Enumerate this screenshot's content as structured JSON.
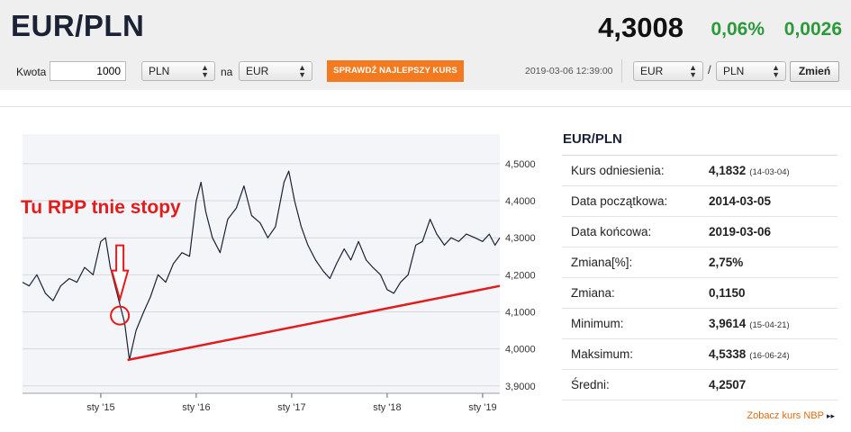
{
  "header": {
    "pair": "EUR/PLN",
    "price": "4,3008",
    "change_pct": "0,06%",
    "change_abs": "0,0026"
  },
  "converter": {
    "amount_label": "Kwota",
    "amount_value": "1000",
    "from_currency": "PLN",
    "to_label": "na",
    "to_currency": "EUR",
    "best_rate_button": "SPRAWDŹ NAJLEPSZY KURS",
    "timestamp": "2019-03-06 12:39:00",
    "pair_select_base": "EUR",
    "pair_select_separator": "/",
    "pair_select_quote": "PLN",
    "change_button": "Zmień"
  },
  "stats": {
    "title": "EUR/PLN",
    "rows": [
      {
        "label": "Kurs odniesienia:",
        "value": "4,1832",
        "date": "(14-03-04)"
      },
      {
        "label": "Data początkowa:",
        "value": "2014-03-05",
        "date": ""
      },
      {
        "label": "Data końcowa:",
        "value": "2019-03-06",
        "date": ""
      },
      {
        "label": "Zmiana[%]:",
        "value": "2,75%",
        "date": ""
      },
      {
        "label": "Zmiana:",
        "value": "0,1150",
        "date": ""
      },
      {
        "label": "Minimum:",
        "value": "3,9614",
        "date": "(15-04-21)"
      },
      {
        "label": "Maksimum:",
        "value": "4,5338",
        "date": "(16-06-24)"
      },
      {
        "label": "Średni:",
        "value": "4,2507",
        "date": ""
      }
    ],
    "nbp_link": "Zobacz kurs NBP"
  },
  "chart_data": {
    "type": "line",
    "title": "",
    "xlabel": "",
    "ylabel": "",
    "ylim": [
      3.88,
      4.58
    ],
    "x_range": [
      2014.18,
      2019.18
    ],
    "y_ticks": [
      "3,9000",
      "4,0000",
      "4,1000",
      "4,2000",
      "4,3000",
      "4,4000",
      "4,5000"
    ],
    "y_tick_values": [
      3.9,
      4.0,
      4.1,
      4.2,
      4.3,
      4.4,
      4.5
    ],
    "x_ticks": [
      "sty '15",
      "sty '16",
      "sty '17",
      "sty '18",
      "sty '19"
    ],
    "x_tick_values": [
      2015.0,
      2016.0,
      2017.0,
      2018.0,
      2019.0
    ],
    "grid": true,
    "series": [
      {
        "color": "#1b2235",
        "points": [
          [
            2014.18,
            4.18
          ],
          [
            2014.25,
            4.17
          ],
          [
            2014.33,
            4.2
          ],
          [
            2014.42,
            4.15
          ],
          [
            2014.5,
            4.13
          ],
          [
            2014.58,
            4.17
          ],
          [
            2014.67,
            4.19
          ],
          [
            2014.75,
            4.18
          ],
          [
            2014.83,
            4.22
          ],
          [
            2014.92,
            4.2
          ],
          [
            2015.0,
            4.29
          ],
          [
            2015.05,
            4.3
          ],
          [
            2015.1,
            4.22
          ],
          [
            2015.17,
            4.15
          ],
          [
            2015.25,
            4.07
          ],
          [
            2015.3,
            3.97
          ],
          [
            2015.37,
            4.05
          ],
          [
            2015.45,
            4.1
          ],
          [
            2015.52,
            4.14
          ],
          [
            2015.6,
            4.2
          ],
          [
            2015.68,
            4.18
          ],
          [
            2015.76,
            4.23
          ],
          [
            2015.85,
            4.26
          ],
          [
            2015.93,
            4.25
          ],
          [
            2016.0,
            4.4
          ],
          [
            2016.05,
            4.45
          ],
          [
            2016.1,
            4.37
          ],
          [
            2016.17,
            4.3
          ],
          [
            2016.25,
            4.26
          ],
          [
            2016.33,
            4.35
          ],
          [
            2016.42,
            4.38
          ],
          [
            2016.5,
            4.44
          ],
          [
            2016.58,
            4.36
          ],
          [
            2016.67,
            4.34
          ],
          [
            2016.75,
            4.3
          ],
          [
            2016.83,
            4.33
          ],
          [
            2016.92,
            4.45
          ],
          [
            2016.97,
            4.48
          ],
          [
            2017.03,
            4.4
          ],
          [
            2017.1,
            4.33
          ],
          [
            2017.17,
            4.28
          ],
          [
            2017.25,
            4.24
          ],
          [
            2017.33,
            4.21
          ],
          [
            2017.4,
            4.19
          ],
          [
            2017.47,
            4.23
          ],
          [
            2017.55,
            4.27
          ],
          [
            2017.62,
            4.24
          ],
          [
            2017.7,
            4.29
          ],
          [
            2017.78,
            4.24
          ],
          [
            2017.85,
            4.22
          ],
          [
            2017.93,
            4.2
          ],
          [
            2018.0,
            4.16
          ],
          [
            2018.07,
            4.15
          ],
          [
            2018.14,
            4.18
          ],
          [
            2018.22,
            4.2
          ],
          [
            2018.3,
            4.28
          ],
          [
            2018.37,
            4.29
          ],
          [
            2018.45,
            4.35
          ],
          [
            2018.52,
            4.31
          ],
          [
            2018.6,
            4.28
          ],
          [
            2018.67,
            4.3
          ],
          [
            2018.75,
            4.29
          ],
          [
            2018.83,
            4.31
          ],
          [
            2018.92,
            4.3
          ],
          [
            2019.0,
            4.29
          ],
          [
            2019.07,
            4.31
          ],
          [
            2019.13,
            4.28
          ],
          [
            2019.18,
            4.3
          ]
        ]
      }
    ],
    "trend_line": {
      "color": "#e21b1b",
      "points": [
        [
          2015.28,
          3.97
        ],
        [
          2019.18,
          4.17
        ]
      ]
    },
    "annotation": {
      "text": "Tu RPP tnie stopy",
      "color": "#e21b1b",
      "circle_at": [
        2015.2,
        4.09
      ]
    }
  }
}
